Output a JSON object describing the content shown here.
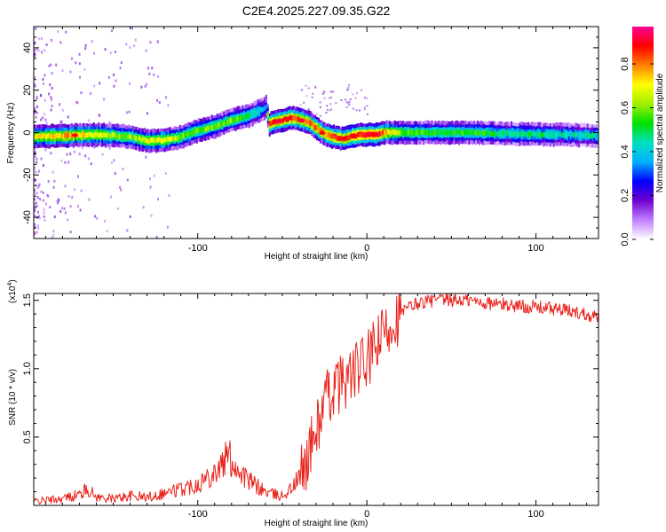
{
  "figure": {
    "title": "C2E4.2025.227.09.35.G22"
  },
  "colorbar": {
    "label": "Normalized spectral amplitude",
    "range": [
      0.0,
      0.97
    ],
    "ticks": [
      "0.0",
      "0.2",
      "0.4",
      "0.6",
      "0.8"
    ],
    "tick_values": [
      0.0,
      0.2,
      0.4,
      0.6,
      0.8
    ],
    "colors": [
      "#ffffff",
      "#c080ff",
      "#7000d0",
      "#0000ff",
      "#00b0ff",
      "#00e0c0",
      "#00e000",
      "#a0f000",
      "#ffff00",
      "#ff8000",
      "#ff0000",
      "#ff0090"
    ]
  },
  "colors": {
    "snr_line": "#e8231b",
    "spectrogram_trace": "#ff0000"
  },
  "chart_data": [
    {
      "type": "heatmap",
      "xlabel": "Height of straight line (km)",
      "ylabel": "Frequency (Hz)",
      "xlim": [
        -197,
        137
      ],
      "ylim": [
        -50,
        50
      ],
      "xticks": [
        -100,
        0,
        100
      ],
      "xtick_labels": [
        "-100",
        "0",
        "100"
      ],
      "yticks": [
        -40,
        -20,
        0,
        20,
        40
      ],
      "ytick_labels": [
        "-40",
        "-20",
        "0",
        "20",
        "40"
      ],
      "ridge_frequency": {
        "x": [
          -197,
          -180,
          -160,
          -140,
          -130,
          -120,
          -110,
          -100,
          -90,
          -80,
          -70,
          -62,
          -60,
          -58,
          -55,
          -50,
          -45,
          -40,
          -35,
          -30,
          -25,
          -20,
          -15,
          -10,
          -5,
          0,
          5,
          10,
          20,
          40,
          60,
          80,
          100,
          120,
          137
        ],
        "y": [
          -2,
          -1.5,
          -1,
          -2,
          -4,
          -3.5,
          -2,
          1,
          3,
          6,
          8,
          11,
          12,
          4,
          5,
          6,
          7,
          6,
          5,
          2,
          -1,
          -2,
          -3,
          -2,
          -1,
          -1,
          -1,
          0,
          0,
          0,
          0,
          -0.5,
          -0.8,
          -1,
          -1.5
        ]
      },
      "ridge_amplitude": [
        0.7,
        0.8,
        0.7,
        0.6,
        0.7,
        0.7,
        0.6,
        0.6,
        0.6,
        0.6,
        0.5,
        0.4,
        0.35,
        0.9,
        0.9,
        0.9,
        0.9,
        0.85,
        0.85,
        0.85,
        0.8,
        0.9,
        0.85,
        0.9,
        0.95,
        0.95,
        0.95,
        0.8,
        0.6,
        0.55,
        0.55,
        0.5,
        0.5,
        0.45,
        0.45
      ]
    },
    {
      "type": "line",
      "xlabel": "Height of straight line (km)",
      "ylabel": "SNR (10 * v/v)",
      "yscale_label": "(x10",
      "yscale_exponent": "4",
      "yscale_close": ")",
      "xlim": [
        -197,
        137
      ],
      "ylim": [
        0,
        1.55
      ],
      "xticks": [
        -100,
        0,
        100
      ],
      "xtick_labels": [
        "-100",
        "0",
        "100"
      ],
      "yticks": [
        0.5,
        1.0,
        1.5
      ],
      "ytick_labels": [
        "0.5",
        "1.0",
        "1.5"
      ],
      "series": [
        {
          "x": [
            -197,
            -180,
            -170,
            -165,
            -160,
            -150,
            -140,
            -130,
            -120,
            -110,
            -100,
            -95,
            -90,
            -85,
            -82,
            -80,
            -75,
            -70,
            -65,
            -60,
            -55,
            -50,
            -45,
            -40,
            -35,
            -30,
            -25,
            -20,
            -15,
            -10,
            -5,
            0,
            5,
            10,
            15,
            20,
            25,
            30,
            40,
            50,
            60,
            70,
            80,
            90,
            100,
            110,
            120,
            130,
            137
          ],
          "values": [
            0.03,
            0.05,
            0.08,
            0.12,
            0.06,
            0.05,
            0.07,
            0.06,
            0.09,
            0.12,
            0.16,
            0.2,
            0.25,
            0.3,
            0.38,
            0.32,
            0.25,
            0.18,
            0.14,
            0.1,
            0.08,
            0.07,
            0.12,
            0.2,
            0.35,
            0.55,
            0.75,
            0.85,
            0.9,
            0.95,
            1.0,
            1.05,
            1.15,
            1.25,
            1.35,
            1.4,
            1.45,
            1.48,
            1.5,
            1.5,
            1.5,
            1.48,
            1.47,
            1.46,
            1.45,
            1.44,
            1.42,
            1.4,
            1.38
          ]
        }
      ]
    }
  ]
}
